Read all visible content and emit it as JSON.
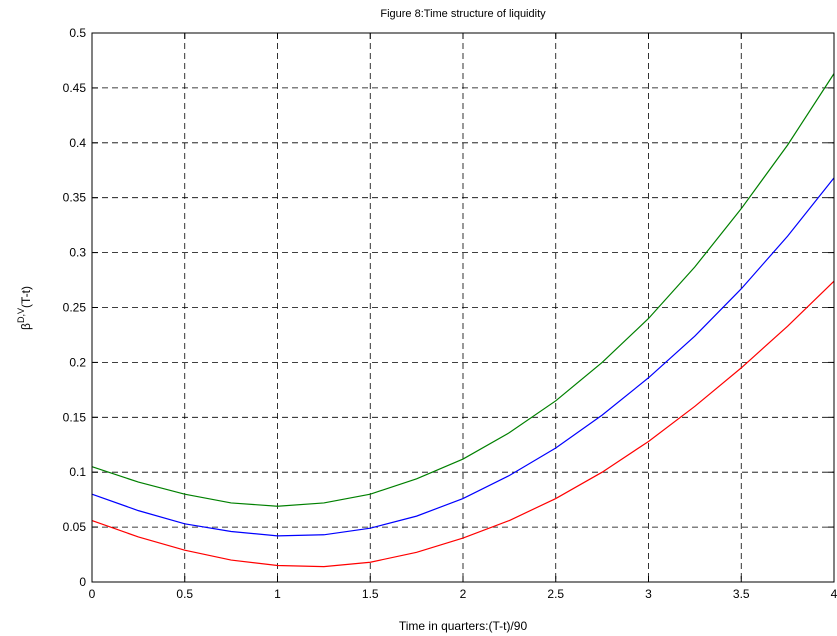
{
  "chart_data": {
    "type": "line",
    "title": "Figure 8:Time structure of liquidity",
    "xlabel": "Time in quarters:(T-t)/90",
    "ylabel": [
      "β",
      "D,V",
      "(T-t)"
    ],
    "x": [
      0,
      0.25,
      0.5,
      0.75,
      1,
      1.25,
      1.5,
      1.75,
      2,
      2.25,
      2.5,
      2.75,
      3,
      3.25,
      3.5,
      3.75,
      4
    ],
    "series": [
      {
        "color": "#008000",
        "values": [
          0.105,
          0.091,
          0.08,
          0.072,
          0.069,
          0.072,
          0.08,
          0.094,
          0.112,
          0.136,
          0.165,
          0.2,
          0.24,
          0.287,
          0.34,
          0.398,
          0.463
        ]
      },
      {
        "color": "#0000ff",
        "values": [
          0.08,
          0.065,
          0.053,
          0.046,
          0.042,
          0.043,
          0.049,
          0.06,
          0.076,
          0.097,
          0.122,
          0.152,
          0.186,
          0.224,
          0.267,
          0.315,
          0.368
        ]
      },
      {
        "color": "#ff0000",
        "values": [
          0.056,
          0.041,
          0.029,
          0.02,
          0.015,
          0.014,
          0.018,
          0.027,
          0.04,
          0.056,
          0.076,
          0.1,
          0.128,
          0.16,
          0.195,
          0.233,
          0.274
        ]
      }
    ],
    "xlim": [
      0,
      4
    ],
    "xticks": [
      0,
      0.5,
      1,
      1.5,
      2,
      2.5,
      3,
      3.5,
      4
    ],
    "ylim": [
      0,
      0.5
    ],
    "yticks": [
      0,
      0.05,
      0.1,
      0.15,
      0.2,
      0.25,
      0.3,
      0.35,
      0.4,
      0.45,
      0.5
    ],
    "grid": true
  }
}
